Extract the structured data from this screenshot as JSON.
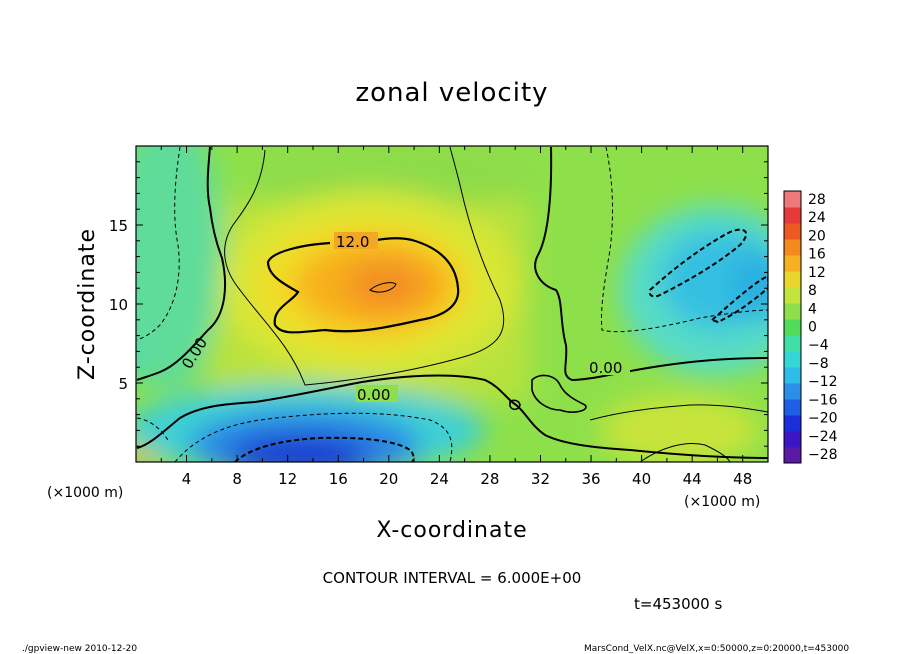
{
  "chart_data": {
    "type": "heatmap",
    "title": "zonal velocity",
    "xlabel": "X-coordinate",
    "ylabel": "Z-coordinate",
    "x_unit": "(×1000 m)",
    "x_unit_right": "(×1000 m)",
    "xlim": [
      0,
      50
    ],
    "ylim": [
      0,
      20
    ],
    "x_ticks": [
      "4",
      "8",
      "12",
      "16",
      "20",
      "24",
      "28",
      "32",
      "36",
      "40",
      "44",
      "48"
    ],
    "y_ticks": [
      "5",
      "10",
      "15"
    ],
    "colorbar": {
      "min": -30,
      "max": 30,
      "labels": [
        "28",
        "24",
        "20",
        "16",
        "12",
        "8",
        "4",
        "0",
        "−4",
        "−8",
        "−12",
        "−16",
        "−20",
        "−24",
        "−28"
      ]
    },
    "contour_labels": [
      "12.0",
      "0.00",
      "0.00",
      "0.00"
    ],
    "contour_interval_text": "CONTOUR INTERVAL = 6.000E+00",
    "time_text": "t=453000 s",
    "features": [
      {
        "name": "positive maximum",
        "x": 19.5,
        "z": 11,
        "value": 17
      },
      {
        "name": "negative minimum",
        "x": 16.5,
        "z": 0.8,
        "value": -21
      },
      {
        "name": "negative region upper right",
        "x": 46,
        "z": 11.5,
        "value": -10
      }
    ]
  },
  "footer": {
    "left": "./gpview-new  2010-12-20",
    "right": "MarsCond_VelX.nc@VelX,x=0:50000,z=0:20000,t=453000"
  }
}
